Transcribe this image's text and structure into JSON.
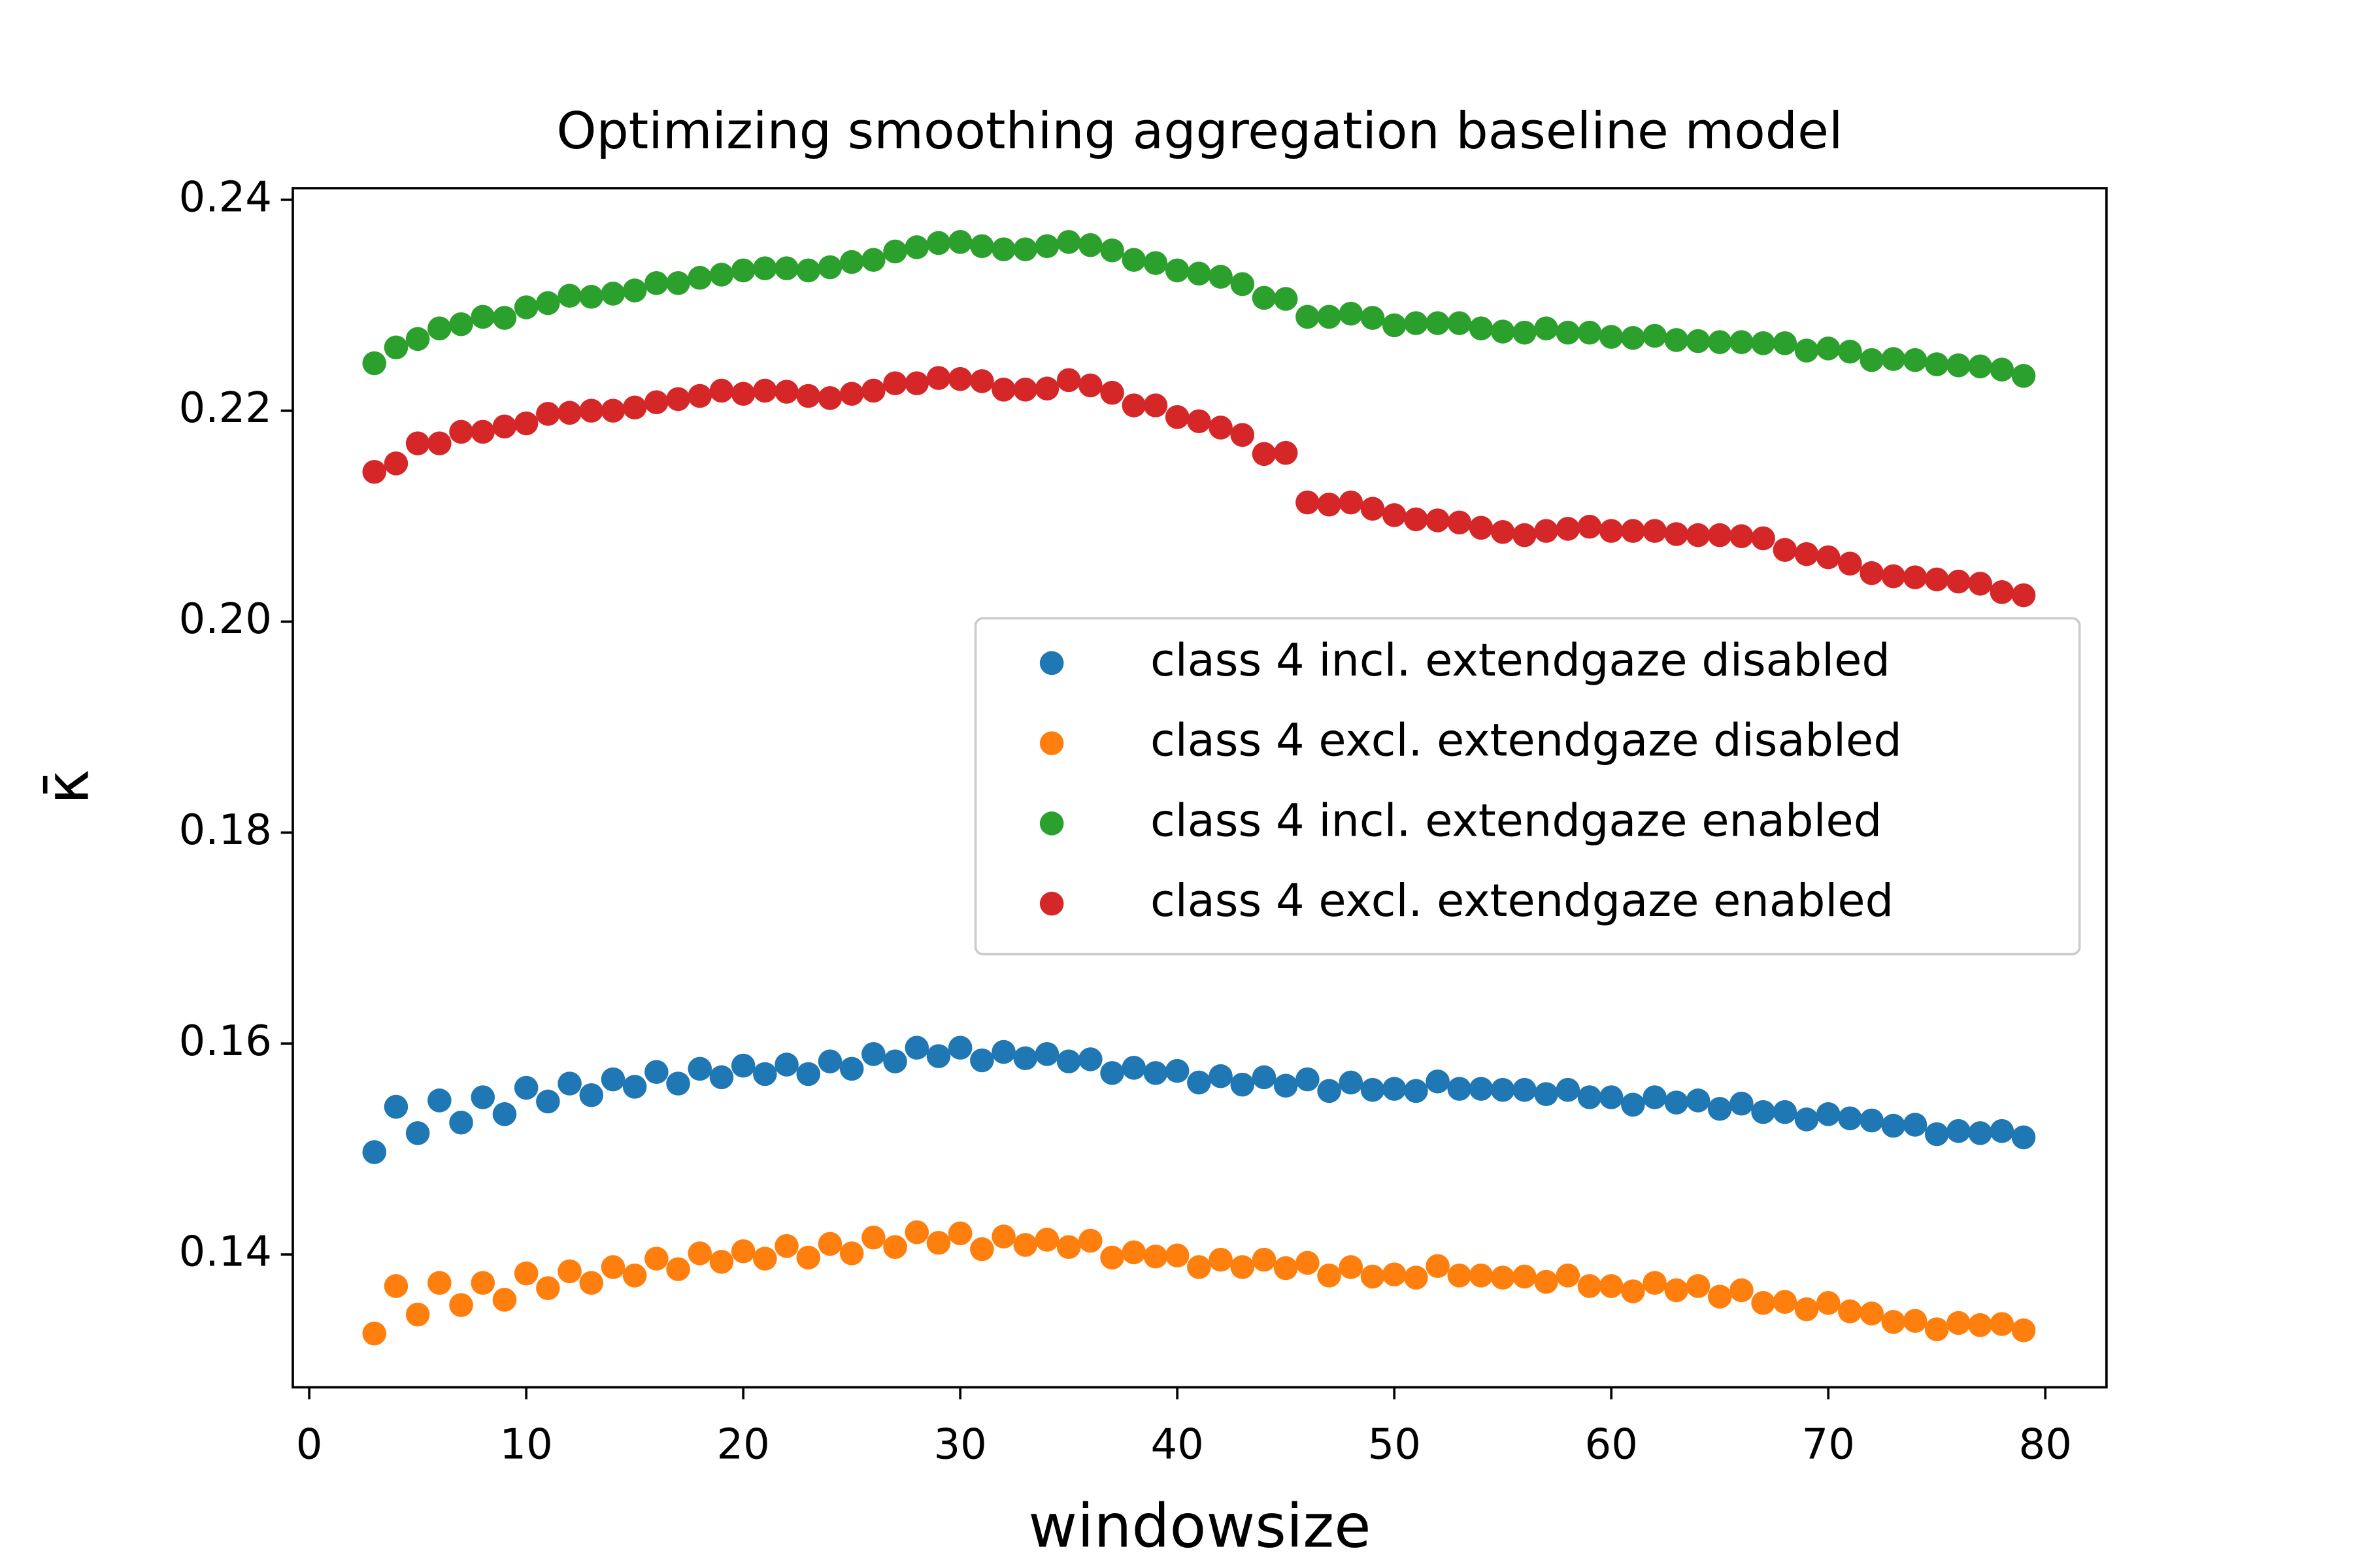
{
  "chart_data": {
    "type": "scatter",
    "title": "Optimizing smoothing aggregation baseline model",
    "x_label": "windowsize",
    "y_label": "κ̄",
    "x": [
      3,
      4,
      5,
      6,
      7,
      8,
      9,
      10,
      11,
      12,
      13,
      14,
      15,
      16,
      17,
      18,
      19,
      20,
      21,
      22,
      23,
      24,
      25,
      26,
      27,
      28,
      29,
      30,
      31,
      32,
      33,
      34,
      35,
      36,
      37,
      38,
      39,
      40,
      41,
      42,
      43,
      44,
      45,
      46,
      47,
      48,
      49,
      50,
      51,
      52,
      53,
      54,
      55,
      56,
      57,
      58,
      59,
      60,
      61,
      62,
      63,
      64,
      65,
      66,
      67,
      68,
      69,
      70,
      71,
      72,
      73,
      74,
      75,
      76,
      77,
      78,
      79
    ],
    "series": [
      {
        "name": "class 4 incl. extendgaze disabled",
        "color": "#1f77b4",
        "values": [
          0.1497,
          0.154,
          0.1515,
          0.1546,
          0.1525,
          0.1549,
          0.1533,
          0.1558,
          0.1545,
          0.1562,
          0.1551,
          0.1566,
          0.1559,
          0.1573,
          0.1562,
          0.1576,
          0.1568,
          0.1579,
          0.1571,
          0.158,
          0.1571,
          0.1583,
          0.1576,
          0.159,
          0.1583,
          0.1596,
          0.1588,
          0.1596,
          0.1584,
          0.1592,
          0.1586,
          0.159,
          0.1583,
          0.1585,
          0.1572,
          0.1577,
          0.1572,
          0.1574,
          0.1563,
          0.1569,
          0.1561,
          0.1568,
          0.156,
          0.1566,
          0.1555,
          0.1563,
          0.1556,
          0.1557,
          0.1555,
          0.1564,
          0.1557,
          0.1557,
          0.1556,
          0.1556,
          0.1552,
          0.1556,
          0.1549,
          0.1549,
          0.1542,
          0.1549,
          0.1544,
          0.1546,
          0.1538,
          0.1543,
          0.1535,
          0.1535,
          0.1528,
          0.1533,
          0.1529,
          0.1527,
          0.1522,
          0.1523,
          0.1514,
          0.1517,
          0.1515,
          0.1517,
          0.1511
        ]
      },
      {
        "name": "class 4 excl. extendgaze disabled",
        "color": "#ff7f0e",
        "values": [
          0.1325,
          0.137,
          0.1343,
          0.1373,
          0.1352,
          0.1373,
          0.1357,
          0.1382,
          0.1368,
          0.1384,
          0.1373,
          0.1388,
          0.138,
          0.1396,
          0.1386,
          0.1401,
          0.1393,
          0.1403,
          0.1396,
          0.1408,
          0.1397,
          0.141,
          0.1401,
          0.1416,
          0.1407,
          0.1421,
          0.1411,
          0.142,
          0.1405,
          0.1417,
          0.1409,
          0.1414,
          0.1407,
          0.1413,
          0.1397,
          0.1402,
          0.1398,
          0.1399,
          0.1388,
          0.1395,
          0.1388,
          0.1395,
          0.1387,
          0.1392,
          0.138,
          0.1388,
          0.1379,
          0.1381,
          0.1378,
          0.1389,
          0.138,
          0.138,
          0.1378,
          0.1379,
          0.1374,
          0.138,
          0.137,
          0.137,
          0.1365,
          0.1373,
          0.1366,
          0.137,
          0.136,
          0.1366,
          0.1354,
          0.1355,
          0.1348,
          0.1354,
          0.1346,
          0.1344,
          0.1336,
          0.1337,
          0.1329,
          0.1335,
          0.1333,
          0.1334,
          0.1328
        ]
      },
      {
        "name": "class 4 incl. extendgaze enabled",
        "color": "#2ca02c",
        "values": [
          0.2245,
          0.226,
          0.2268,
          0.2278,
          0.2282,
          0.2289,
          0.2288,
          0.2298,
          0.2302,
          0.2309,
          0.2308,
          0.2311,
          0.2314,
          0.2321,
          0.2321,
          0.2326,
          0.2329,
          0.2333,
          0.2335,
          0.2335,
          0.2333,
          0.2336,
          0.2341,
          0.2343,
          0.2351,
          0.2355,
          0.2359,
          0.236,
          0.2356,
          0.2353,
          0.2353,
          0.2356,
          0.236,
          0.2357,
          0.2352,
          0.2343,
          0.234,
          0.2333,
          0.233,
          0.2327,
          0.232,
          0.2307,
          0.2306,
          0.2289,
          0.2289,
          0.2292,
          0.2288,
          0.2281,
          0.2283,
          0.2283,
          0.2283,
          0.2278,
          0.2275,
          0.2274,
          0.2278,
          0.2274,
          0.2274,
          0.227,
          0.2269,
          0.2271,
          0.2267,
          0.2266,
          0.2265,
          0.2265,
          0.2264,
          0.2264,
          0.2257,
          0.2259,
          0.2256,
          0.2248,
          0.2249,
          0.2248,
          0.2244,
          0.2243,
          0.2242,
          0.2239,
          0.2233
        ]
      },
      {
        "name": "class 4 excl. extendgaze enabled",
        "color": "#d62728",
        "values": [
          0.2142,
          0.215,
          0.2169,
          0.2169,
          0.218,
          0.218,
          0.2185,
          0.2188,
          0.2197,
          0.2198,
          0.22,
          0.22,
          0.2203,
          0.2208,
          0.2211,
          0.2214,
          0.2219,
          0.2216,
          0.2219,
          0.2218,
          0.2214,
          0.2212,
          0.2216,
          0.2219,
          0.2226,
          0.2226,
          0.2231,
          0.223,
          0.2228,
          0.222,
          0.222,
          0.2221,
          0.2229,
          0.2224,
          0.2217,
          0.2205,
          0.2205,
          0.2194,
          0.219,
          0.2184,
          0.2177,
          0.2159,
          0.216,
          0.2113,
          0.2111,
          0.2113,
          0.2107,
          0.2101,
          0.2097,
          0.2096,
          0.2094,
          0.2089,
          0.2085,
          0.2082,
          0.2086,
          0.2088,
          0.209,
          0.2086,
          0.2086,
          0.2086,
          0.2083,
          0.2082,
          0.2082,
          0.2081,
          0.2079,
          0.2068,
          0.2064,
          0.2061,
          0.2055,
          0.2046,
          0.2043,
          0.2042,
          0.204,
          0.2038,
          0.2036,
          0.2028,
          0.2025
        ]
      }
    ],
    "xlim": [
      -0.757,
      82.82
    ],
    "ylim": [
      0.1274,
      0.2411
    ],
    "xticks": [
      0,
      10,
      20,
      30,
      40,
      50,
      60,
      70,
      80
    ],
    "yticks": [
      0.14,
      0.16,
      0.18,
      {
        "value": 0.2,
        "label": "0.20"
      },
      0.22,
      0.24
    ],
    "legend": "center right"
  }
}
